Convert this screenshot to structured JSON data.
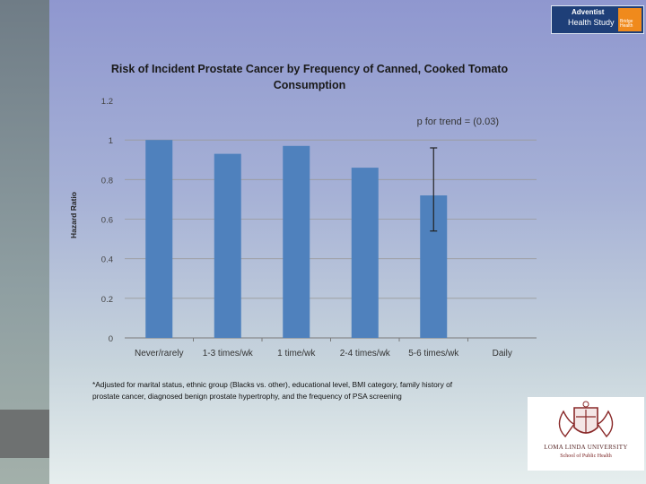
{
  "chart_data": {
    "type": "bar",
    "title": "Risk of Incident Prostate Cancer by Frequency of Canned, Cooked Tomato Consumption",
    "title_lines": [
      "Risk of Incident Prostate Cancer by Frequency of Canned, Cooked Tomato",
      "Consumption"
    ],
    "ylabel": "Hazard Ratio",
    "xlabel": "",
    "categories": [
      "Never/rarely",
      "1-3 times/wk",
      "1 time/wk",
      "2-4 times/wk",
      "5-6 times/wk",
      "Daily"
    ],
    "values": [
      1.0,
      0.93,
      0.97,
      0.86,
      0.72,
      null
    ],
    "error_bar": {
      "category": "5-6 times/wk",
      "low": 0.54,
      "high": 0.96
    },
    "ylim": [
      0,
      1.2
    ],
    "yticks": [
      "0",
      "0.2",
      "0.4",
      "0.6",
      "0.8",
      "1",
      "1.2"
    ],
    "grid": true,
    "bar_color": "#4f81bd",
    "annotation": "p for trend = (0.03)",
    "footnote_lines": [
      "*Adjusted for marital status, ethnic group (Blacks vs. other), educational level, BMI category, family history of",
      "prostate cancer, diagnosed benign prostate hypertrophy, and the frequency of PSA screening"
    ]
  },
  "logos": {
    "ahs_line1": "Adventist",
    "ahs_line2": "Health Study",
    "ahs_line3": "Bridge Health",
    "llu_name": "LOMA LINDA UNIVERSITY",
    "llu_school": "School of Public Health"
  }
}
